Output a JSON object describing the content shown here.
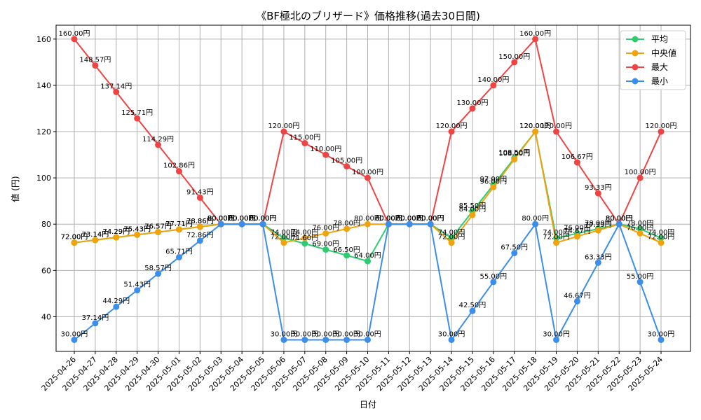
{
  "chart_data": {
    "type": "line",
    "title": "《BF極北のブリザード》価格推移(過去30日間)",
    "xlabel": "日付",
    "ylabel": "値 (円)",
    "ylim": [
      25,
      166
    ],
    "yticks": [
      40,
      60,
      80,
      100,
      120,
      140,
      160
    ],
    "grid": true,
    "legend_position": "top-right",
    "label_suffix": "円",
    "categories": [
      "2025-04-26",
      "2025-04-27",
      "2025-04-28",
      "2025-04-29",
      "2025-04-30",
      "2025-05-01",
      "2025-05-02",
      "2025-05-03",
      "2025-05-04",
      "2025-05-05",
      "2025-05-06",
      "2025-05-07",
      "2025-05-08",
      "2025-05-09",
      "2025-05-10",
      "2025-05-11",
      "2025-05-12",
      "2025-05-13",
      "2025-05-14",
      "2025-05-15",
      "2025-05-16",
      "2025-05-17",
      "2025-05-18",
      "2025-05-19",
      "2025-05-20",
      "2025-05-21",
      "2025-05-22",
      "2025-05-23",
      "2025-05-24"
    ],
    "series": [
      {
        "name": "平均",
        "color": "#2ecc71",
        "values": [
          72.0,
          73.14,
          74.29,
          75.43,
          76.57,
          77.71,
          78.86,
          80.0,
          80.0,
          80.0,
          74.0,
          71.6,
          69.0,
          66.5,
          64.0,
          80.0,
          80.0,
          80.0,
          74.0,
          85.5,
          97.0,
          108.5,
          120.0,
          74.0,
          76.0,
          78.0,
          80.0,
          78.0,
          74.0
        ]
      },
      {
        "name": "中央値",
        "color": "#f0a30a",
        "values": [
          72.0,
          73.14,
          74.29,
          75.43,
          76.57,
          77.71,
          78.86,
          80.0,
          80.0,
          80.0,
          72.0,
          74.0,
          76.0,
          78.0,
          80.0,
          80.0,
          80.0,
          80.0,
          72.0,
          84.0,
          96.0,
          108.0,
          120.0,
          72.0,
          74.67,
          77.33,
          80.0,
          76.0,
          72.0
        ]
      },
      {
        "name": "最大",
        "color": "#ef4444",
        "values": [
          160.0,
          148.57,
          137.14,
          125.71,
          114.29,
          102.86,
          91.43,
          80.0,
          80.0,
          80.0,
          120.0,
          115.0,
          110.0,
          105.0,
          100.0,
          80.0,
          80.0,
          80.0,
          120.0,
          130.0,
          140.0,
          150.0,
          160.0,
          120.0,
          106.67,
          93.33,
          80.0,
          100.0,
          120.0
        ]
      },
      {
        "name": "最小",
        "color": "#3b8eea",
        "values": [
          30.0,
          37.14,
          44.29,
          51.43,
          58.57,
          65.71,
          72.86,
          80.0,
          80.0,
          80.0,
          30.0,
          30.0,
          30.0,
          30.0,
          30.0,
          80.0,
          80.0,
          80.0,
          30.0,
          42.5,
          55.0,
          67.5,
          80.0,
          30.0,
          46.67,
          63.33,
          80.0,
          55.0,
          30.0
        ]
      }
    ]
  }
}
